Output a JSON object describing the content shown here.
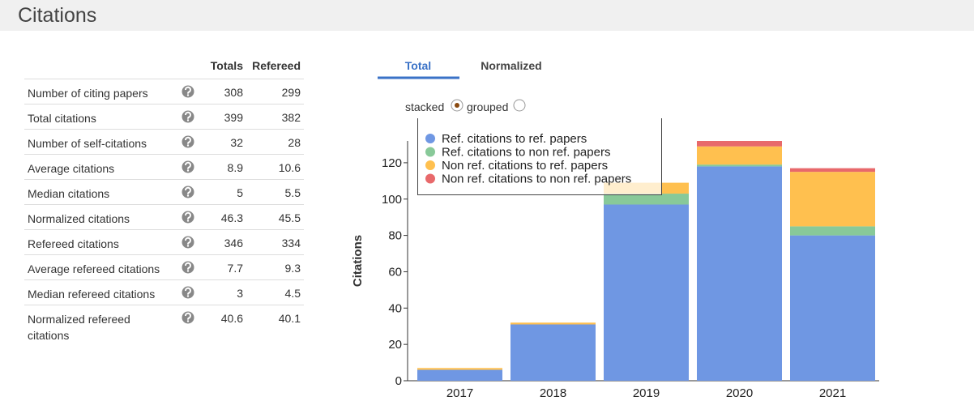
{
  "header": {
    "title": "Citations"
  },
  "table": {
    "columns": [
      "Totals",
      "Refereed"
    ],
    "rows": [
      [
        "Number of citing papers",
        308,
        299
      ],
      [
        "Total citations",
        399,
        382
      ],
      [
        "Number of self-citations",
        32,
        28
      ],
      [
        "Average citations",
        8.9,
        10.6
      ],
      [
        "Median citations",
        5,
        5.5
      ],
      [
        "Normalized citations",
        46.3,
        45.5
      ],
      [
        "Refereed citations",
        346,
        334
      ],
      [
        "Average refereed citations",
        7.7,
        9.3
      ],
      [
        "Median refereed citations",
        3,
        4.5
      ],
      [
        "Normalized refereed citations",
        40.6,
        40.1
      ]
    ]
  },
  "tabs": [
    "Total",
    "Normalized"
  ],
  "options": [
    "stacked",
    "grouped"
  ],
  "chart_data": {
    "type": "bar",
    "stacked": true,
    "y_label": "Citations",
    "categories": [
      "2017",
      "2018",
      "2019",
      "2020",
      "2021"
    ],
    "series": [
      {
        "name": "Ref. citations to ref. papers",
        "color": "#6f97e3",
        "values": [
          6,
          31,
          97,
          118,
          80
        ]
      },
      {
        "name": "Ref. citations to non ref. papers",
        "color": "#88c999",
        "values": [
          0,
          0,
          6,
          1,
          5
        ]
      },
      {
        "name": "Non ref. citations to ref. papers",
        "color": "#ffc04f",
        "values": [
          1,
          1,
          6,
          10,
          30
        ]
      },
      {
        "name": "Non ref. citations to non ref. papers",
        "color": "#e8696b",
        "values": [
          0,
          0,
          0,
          3,
          2
        ]
      }
    ],
    "ylim": [
      0,
      132
    ],
    "yticks": [
      0,
      20,
      40,
      60,
      80,
      100,
      120
    ]
  }
}
